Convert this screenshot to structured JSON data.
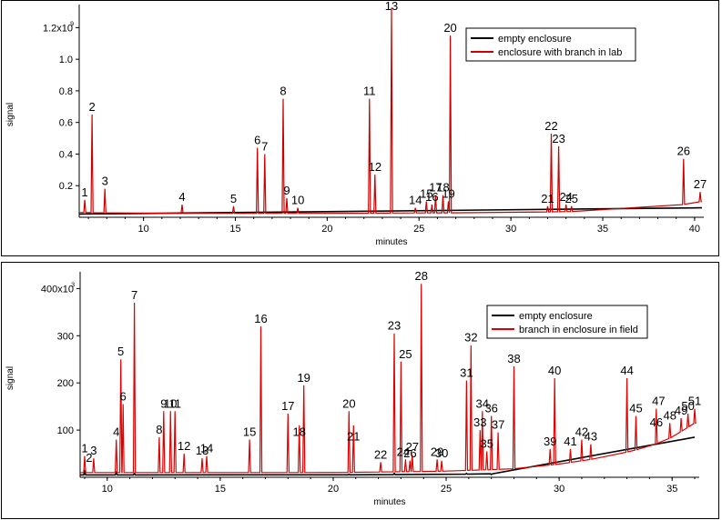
{
  "chart_data": [
    {
      "type": "line",
      "xlabel": "minutes",
      "ylabel": "signal",
      "xlim": [
        6.5,
        40.5
      ],
      "ylim": [
        0,
        1.3
      ],
      "x_ticks": [
        10,
        15,
        20,
        25,
        30,
        35,
        40
      ],
      "y_ticks": [
        {
          "value": 0.2,
          "label": "0.2"
        },
        {
          "value": 0.4,
          "label": "0.4"
        },
        {
          "value": 0.6,
          "label": "0.6"
        },
        {
          "value": 0.8,
          "label": "0.8"
        },
        {
          "value": 1.0,
          "label": "1.0"
        },
        {
          "value": 1.2,
          "label": "1.2x10"
        }
      ],
      "y_exponent": "9",
      "legend_position": "top-right",
      "grid": false,
      "series": [
        {
          "name": "empty enclosure",
          "color": "#000000",
          "baseline": [
            [
              6.5,
              0.02
            ],
            [
              20,
              0.02
            ],
            [
              30,
              0.025
            ],
            [
              35,
              0.03
            ],
            [
              38,
              0.04
            ],
            [
              40.4,
              0.06
            ]
          ],
          "peaks": []
        },
        {
          "name": "enclosure with branch in lab",
          "color": "#cc0000",
          "baseline": [
            [
              6.5,
              0.03
            ],
            [
              10,
              0.025
            ],
            [
              20,
              0.025
            ],
            [
              30,
              0.03
            ],
            [
              35,
              0.04
            ],
            [
              38,
              0.055
            ],
            [
              40.4,
              0.1
            ]
          ],
          "peaks": [
            [
              6.8,
              0.11
            ],
            [
              7.2,
              0.65
            ],
            [
              7.9,
              0.18
            ],
            [
              12.1,
              0.08
            ],
            [
              14.9,
              0.07
            ],
            [
              16.2,
              0.44
            ],
            [
              16.6,
              0.4
            ],
            [
              17.6,
              0.75
            ],
            [
              17.8,
              0.12
            ],
            [
              18.4,
              0.06
            ],
            [
              22.3,
              0.75
            ],
            [
              22.6,
              0.27
            ],
            [
              23.5,
              1.35
            ],
            [
              24.8,
              0.06
            ],
            [
              25.4,
              0.1
            ],
            [
              25.7,
              0.08
            ],
            [
              25.9,
              0.14
            ],
            [
              26.3,
              0.14
            ],
            [
              26.6,
              0.1
            ],
            [
              26.7,
              1.15
            ],
            [
              32.0,
              0.07
            ],
            [
              32.2,
              0.53
            ],
            [
              32.6,
              0.45
            ],
            [
              33.0,
              0.08
            ],
            [
              33.3,
              0.07
            ],
            [
              39.4,
              0.37
            ],
            [
              40.3,
              0.16
            ]
          ]
        }
      ],
      "annotations": [
        {
          "label": "1",
          "x": 6.8,
          "y": 0.11
        },
        {
          "label": "2",
          "x": 7.2,
          "y": 0.65
        },
        {
          "label": "3",
          "x": 7.9,
          "y": 0.18
        },
        {
          "label": "4",
          "x": 12.1,
          "y": 0.08
        },
        {
          "label": "5",
          "x": 14.9,
          "y": 0.07
        },
        {
          "label": "6",
          "x": 16.2,
          "y": 0.44
        },
        {
          "label": "7",
          "x": 16.6,
          "y": 0.4
        },
        {
          "label": "8",
          "x": 17.6,
          "y": 0.75
        },
        {
          "label": "9",
          "x": 17.8,
          "y": 0.12
        },
        {
          "label": "10",
          "x": 18.4,
          "y": 0.06
        },
        {
          "label": "11",
          "x": 22.3,
          "y": 0.75
        },
        {
          "label": "12",
          "x": 22.6,
          "y": 0.27
        },
        {
          "label": "13",
          "x": 23.5,
          "y": 1.35
        },
        {
          "label": "14",
          "x": 24.8,
          "y": 0.06
        },
        {
          "label": "15",
          "x": 25.4,
          "y": 0.1
        },
        {
          "label": "16",
          "x": 25.7,
          "y": 0.08
        },
        {
          "label": "17",
          "x": 25.9,
          "y": 0.14
        },
        {
          "label": "18",
          "x": 26.3,
          "y": 0.14
        },
        {
          "label": "19",
          "x": 26.6,
          "y": 0.1
        },
        {
          "label": "20",
          "x": 26.7,
          "y": 1.15
        },
        {
          "label": "21",
          "x": 32.0,
          "y": 0.07
        },
        {
          "label": "22",
          "x": 32.2,
          "y": 0.53
        },
        {
          "label": "23",
          "x": 32.6,
          "y": 0.45
        },
        {
          "label": "24",
          "x": 33.0,
          "y": 0.08
        },
        {
          "label": "25",
          "x": 33.3,
          "y": 0.07
        },
        {
          "label": "26",
          "x": 39.4,
          "y": 0.37
        },
        {
          "label": "27",
          "x": 40.3,
          "y": 0.16
        }
      ]
    },
    {
      "type": "line",
      "xlabel": "minutes",
      "ylabel": "signal",
      "xlim": [
        8.8,
        36.2
      ],
      "ylim": [
        0,
        420
      ],
      "x_ticks": [
        10,
        15,
        20,
        25,
        30,
        35
      ],
      "y_ticks": [
        {
          "value": 100,
          "label": "100"
        },
        {
          "value": 200,
          "label": "200"
        },
        {
          "value": 300,
          "label": "300"
        },
        {
          "value": 400,
          "label": "400x10"
        }
      ],
      "y_exponent": "3",
      "legend_position": "top-right",
      "grid": false,
      "series": [
        {
          "name": "empty enclosure",
          "color": "#000000",
          "baseline": [
            [
              8.8,
              5
            ],
            [
              20,
              5
            ],
            [
              25,
              6
            ],
            [
              28,
              8
            ],
            [
              30,
              15
            ],
            [
              32,
              28
            ],
            [
              34,
              50
            ],
            [
              35,
              65
            ],
            [
              36,
              85
            ]
          ],
          "peaks": [
            [
              9.0,
              12
            ],
            [
              10.4,
              10
            ],
            [
              11.2,
              8
            ],
            [
              20.7,
              6
            ],
            [
              22.7,
              8
            ],
            [
              25.9,
              8
            ],
            [
              27.0,
              6
            ]
          ]
        },
        {
          "name": "branch in enclosure in field",
          "color": "#e00000",
          "baseline": [
            [
              8.8,
              10
            ],
            [
              15,
              10
            ],
            [
              20,
              10
            ],
            [
              25,
              13
            ],
            [
              28,
              18
            ],
            [
              30,
              28
            ],
            [
              32,
              42
            ],
            [
              34,
              65
            ],
            [
              35,
              85
            ],
            [
              36,
              115
            ]
          ],
          "peaks": [
            [
              9.0,
              45
            ],
            [
              9.4,
              40
            ],
            [
              10.4,
              80
            ],
            [
              10.6,
              250
            ],
            [
              10.7,
              155
            ],
            [
              11.2,
              370
            ],
            [
              12.3,
              85
            ],
            [
              12.5,
              140
            ],
            [
              12.8,
              140
            ],
            [
              13.0,
              140
            ],
            [
              13.4,
              50
            ],
            [
              14.2,
              40
            ],
            [
              14.4,
              45
            ],
            [
              16.3,
              80
            ],
            [
              16.8,
              320
            ],
            [
              18.0,
              135
            ],
            [
              18.5,
              110
            ],
            [
              18.7,
              195
            ],
            [
              20.7,
              140
            ],
            [
              20.9,
              110
            ],
            [
              22.1,
              32
            ],
            [
              22.7,
              305
            ],
            [
              23.0,
              245
            ],
            [
              23.2,
              38
            ],
            [
              23.4,
              35
            ],
            [
              23.5,
              48
            ],
            [
              23.9,
              410
            ],
            [
              24.6,
              38
            ],
            [
              24.8,
              35
            ],
            [
              25.9,
              205
            ],
            [
              26.1,
              280
            ],
            [
              26.5,
              100
            ],
            [
              26.6,
              140
            ],
            [
              26.8,
              55
            ],
            [
              27.0,
              130
            ],
            [
              27.3,
              95
            ],
            [
              28.0,
              235
            ],
            [
              29.6,
              60
            ],
            [
              29.8,
              210
            ],
            [
              30.5,
              60
            ],
            [
              31.0,
              80
            ],
            [
              31.4,
              70
            ],
            [
              33.0,
              210
            ],
            [
              33.4,
              130
            ],
            [
              34.3,
              145
            ],
            [
              34.9,
              115
            ],
            [
              35.4,
              125
            ],
            [
              35.7,
              135
            ],
            [
              36.0,
              145
            ]
          ]
        }
      ],
      "annotations": [
        {
          "label": "1",
          "x": 9.0,
          "y": 45
        },
        {
          "label": "2",
          "x": 9.2,
          "y": 25
        },
        {
          "label": "3",
          "x": 9.4,
          "y": 40
        },
        {
          "label": "4",
          "x": 10.4,
          "y": 80
        },
        {
          "label": "5",
          "x": 10.6,
          "y": 250
        },
        {
          "label": "6",
          "x": 10.7,
          "y": 155
        },
        {
          "label": "7",
          "x": 11.2,
          "y": 370
        },
        {
          "label": "8",
          "x": 12.3,
          "y": 85
        },
        {
          "label": "9",
          "x": 12.5,
          "y": 140
        },
        {
          "label": "10",
          "x": 12.8,
          "y": 140
        },
        {
          "label": "11",
          "x": 13.0,
          "y": 140
        },
        {
          "label": "12",
          "x": 13.4,
          "y": 50
        },
        {
          "label": "13",
          "x": 14.2,
          "y": 40
        },
        {
          "label": "14",
          "x": 14.4,
          "y": 45
        },
        {
          "label": "15",
          "x": 16.3,
          "y": 80
        },
        {
          "label": "16",
          "x": 16.8,
          "y": 320
        },
        {
          "label": "17",
          "x": 18.0,
          "y": 135
        },
        {
          "label": "18",
          "x": 18.5,
          "y": 80
        },
        {
          "label": "19",
          "x": 18.7,
          "y": 195
        },
        {
          "label": "20",
          "x": 20.7,
          "y": 140
        },
        {
          "label": "21",
          "x": 20.9,
          "y": 70
        },
        {
          "label": "22",
          "x": 22.1,
          "y": 32
        },
        {
          "label": "23",
          "x": 22.7,
          "y": 305
        },
        {
          "label": "24",
          "x": 23.1,
          "y": 38
        },
        {
          "label": "25",
          "x": 23.2,
          "y": 245
        },
        {
          "label": "26",
          "x": 23.4,
          "y": 35
        },
        {
          "label": "27",
          "x": 23.5,
          "y": 48
        },
        {
          "label": "28",
          "x": 23.9,
          "y": 410
        },
        {
          "label": "29",
          "x": 24.6,
          "y": 38
        },
        {
          "label": "30",
          "x": 24.8,
          "y": 35
        },
        {
          "label": "31",
          "x": 25.9,
          "y": 205
        },
        {
          "label": "32",
          "x": 26.1,
          "y": 280
        },
        {
          "label": "33",
          "x": 26.5,
          "y": 100
        },
        {
          "label": "34",
          "x": 26.6,
          "y": 140
        },
        {
          "label": "35",
          "x": 26.8,
          "y": 55
        },
        {
          "label": "36",
          "x": 27.0,
          "y": 130
        },
        {
          "label": "37",
          "x": 27.3,
          "y": 95
        },
        {
          "label": "38",
          "x": 28.0,
          "y": 235
        },
        {
          "label": "39",
          "x": 29.6,
          "y": 60
        },
        {
          "label": "40",
          "x": 29.8,
          "y": 210
        },
        {
          "label": "41",
          "x": 30.5,
          "y": 60
        },
        {
          "label": "42",
          "x": 31.0,
          "y": 80
        },
        {
          "label": "43",
          "x": 31.4,
          "y": 70
        },
        {
          "label": "44",
          "x": 33.0,
          "y": 210
        },
        {
          "label": "45",
          "x": 33.4,
          "y": 130
        },
        {
          "label": "46",
          "x": 34.3,
          "y": 100
        },
        {
          "label": "47",
          "x": 34.4,
          "y": 145
        },
        {
          "label": "48",
          "x": 34.9,
          "y": 115
        },
        {
          "label": "49",
          "x": 35.4,
          "y": 125
        },
        {
          "label": "50",
          "x": 35.7,
          "y": 135
        },
        {
          "label": "51",
          "x": 36.0,
          "y": 145
        }
      ]
    }
  ]
}
